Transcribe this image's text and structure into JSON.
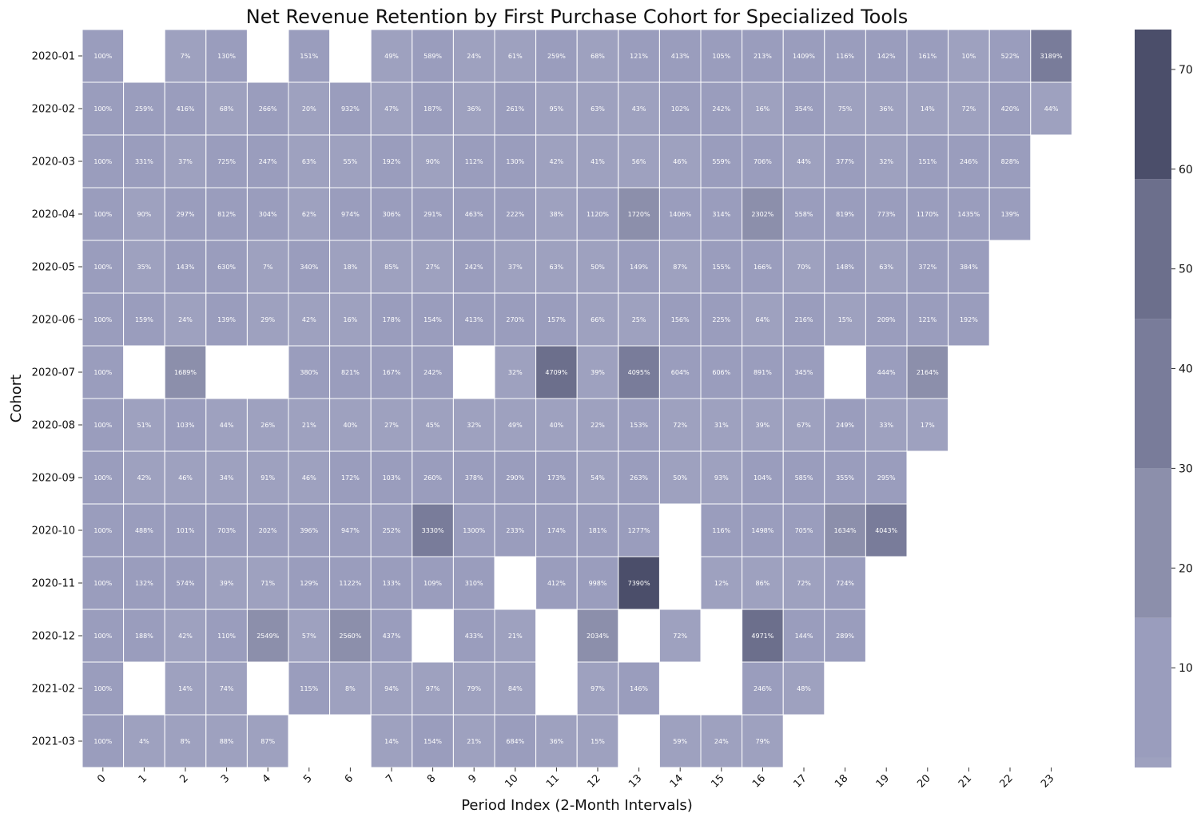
{
  "chart_data": {
    "type": "heatmap",
    "title": "Net Revenue Retention by First Purchase Cohort for Specialized Tools",
    "xlabel": "Period Index (2-Month Intervals)",
    "ylabel": "Cohort",
    "x": [
      "0",
      "1",
      "2",
      "3",
      "4",
      "5",
      "6",
      "7",
      "8",
      "9",
      "10",
      "11",
      "12",
      "13",
      "14",
      "15",
      "16",
      "17",
      "18",
      "19",
      "20",
      "21",
      "22",
      "23"
    ],
    "y": [
      "2020-01",
      "2020-02",
      "2020-03",
      "2020-04",
      "2020-05",
      "2020-06",
      "2020-07",
      "2020-08",
      "2020-09",
      "2020-10",
      "2020-11",
      "2020-12",
      "2021-02",
      "2021-03"
    ],
    "values": [
      [
        100,
        null,
        7,
        130,
        null,
        151,
        null,
        49,
        589,
        24,
        61,
        259,
        68,
        121,
        413,
        105,
        213,
        1409,
        116,
        142,
        161,
        10,
        522,
        3189
      ],
      [
        100,
        259,
        416,
        68,
        266,
        20,
        932,
        47,
        187,
        36,
        261,
        95,
        63,
        43,
        102,
        242,
        16,
        354,
        75,
        36,
        14,
        72,
        420,
        44
      ],
      [
        100,
        331,
        37,
        725,
        247,
        63,
        55,
        192,
        90,
        112,
        130,
        42,
        41,
        56,
        46,
        559,
        706,
        44,
        377,
        32,
        151,
        246,
        828,
        null
      ],
      [
        100,
        90,
        297,
        812,
        304,
        62,
        974,
        306,
        291,
        463,
        222,
        38,
        1120,
        1720,
        1406,
        314,
        2302,
        558,
        819,
        773,
        1170,
        1435,
        139,
        null
      ],
      [
        100,
        35,
        143,
        630,
        7,
        340,
        18,
        85,
        27,
        242,
        37,
        63,
        50,
        149,
        87,
        155,
        166,
        70,
        148,
        63,
        372,
        384,
        null,
        null
      ],
      [
        100,
        159,
        24,
        139,
        29,
        42,
        16,
        178,
        154,
        413,
        270,
        157,
        66,
        25,
        156,
        225,
        64,
        216,
        15,
        209,
        121,
        192,
        null,
        null
      ],
      [
        100,
        null,
        1689,
        null,
        null,
        380,
        821,
        167,
        242,
        null,
        32,
        4709,
        39,
        4095,
        604,
        606,
        891,
        345,
        null,
        444,
        2164,
        null,
        null,
        null
      ],
      [
        100,
        51,
        103,
        44,
        26,
        21,
        40,
        27,
        45,
        32,
        49,
        40,
        22,
        153,
        72,
        31,
        39,
        67,
        249,
        33,
        17,
        null,
        null,
        null
      ],
      [
        100,
        42,
        46,
        34,
        91,
        46,
        172,
        103,
        260,
        378,
        290,
        173,
        54,
        263,
        50,
        93,
        104,
        585,
        355,
        295,
        null,
        null,
        null,
        null
      ],
      [
        100,
        488,
        101,
        703,
        202,
        396,
        947,
        252,
        3330,
        1300,
        233,
        174,
        181,
        1277,
        null,
        116,
        1498,
        705,
        1634,
        4043,
        null,
        null,
        null,
        null
      ],
      [
        100,
        132,
        574,
        39,
        71,
        129,
        1122,
        133,
        109,
        310,
        null,
        412,
        998,
        7390,
        null,
        12,
        86,
        72,
        724,
        null,
        null,
        null,
        null,
        null
      ],
      [
        100,
        188,
        42,
        110,
        2549,
        57,
        2560,
        437,
        null,
        433,
        21,
        null,
        2034,
        null,
        72,
        null,
        4971,
        144,
        289,
        null,
        null,
        null,
        null,
        null
      ],
      [
        100,
        null,
        14,
        74,
        null,
        115,
        8,
        94,
        97,
        79,
        84,
        null,
        97,
        146,
        null,
        null,
        246,
        48,
        null,
        null,
        null,
        null,
        null,
        null
      ],
      [
        100,
        4,
        8,
        88,
        87,
        null,
        null,
        14,
        154,
        21,
        684,
        36,
        15,
        null,
        59,
        24,
        79,
        null,
        null,
        null,
        null,
        null,
        null,
        null
      ]
    ],
    "value_suffix": "%",
    "colorbar": {
      "range": [
        0,
        74
      ],
      "ticks": [
        10,
        20,
        30,
        40,
        50,
        60,
        70
      ],
      "bins": [
        {
          "from": 0,
          "to": 1,
          "color": "#9ea1bf"
        },
        {
          "from": 1,
          "to": 15,
          "color": "#9a9dbd"
        },
        {
          "from": 15,
          "to": 30,
          "color": "#8c8fab"
        },
        {
          "from": 30,
          "to": 45,
          "color": "#797c9a"
        },
        {
          "from": 45,
          "to": 59,
          "color": "#6c6f8c"
        },
        {
          "from": 59,
          "to": 74,
          "color": "#4b4e6a"
        }
      ],
      "scale_note": "color keyed to value/100"
    }
  }
}
